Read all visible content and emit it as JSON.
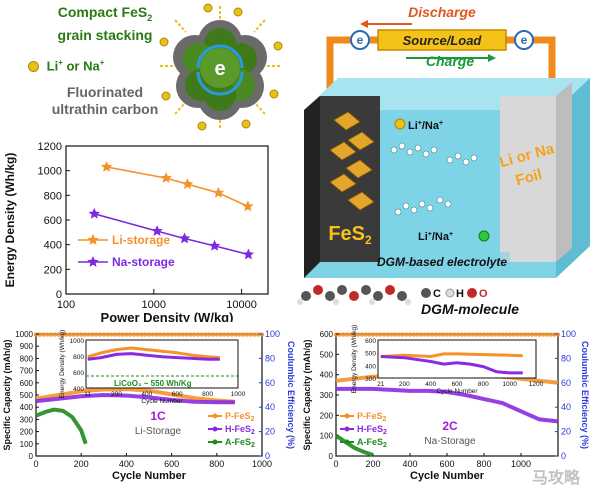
{
  "schematic": {
    "title_line1": "Compact FeS",
    "title_sub": "2",
    "title_line2": "grain stacking",
    "ion_label": "Li",
    "ion_sup1": "+",
    "ion_or": " or Na",
    "ion_sup2": "+",
    "carbon_line1": "Fluorinated",
    "carbon_line2": "ultrathin carbon",
    "center_e": "e",
    "center_e_sup": "-"
  },
  "cell": {
    "discharge": "Discharge",
    "charge": "Charge",
    "source_load": "Source/Load",
    "e_left": "e",
    "e_right": "e",
    "cathode_label": "FeS",
    "cathode_sub": "2",
    "anode_label_1": "Li or Na",
    "anode_label_2": "Foil",
    "ion_top": "Li",
    "ion_top_sup": "+",
    "ion_top_rest": "/Na",
    "ion_top_sup2": "+",
    "ion_bottom": "Li",
    "ion_bottom_sup": "+",
    "ion_bottom_rest": "/Na",
    "ion_bottom_sup2": "+",
    "electrolyte": "DGM-based electrolyte",
    "molecule_label": "DGM-molecule",
    "legend_c": "C",
    "legend_h": "H",
    "legend_o": "O",
    "colors": {
      "cathode": "#3a3a3a",
      "electrolyte": "#7fd3e6",
      "discharge": "#e0571f",
      "charge": "#1a9a3a",
      "wire": "#f08a1c"
    }
  },
  "chart_data": [
    {
      "type": "line",
      "xscale": "log",
      "xlabel": "Power Density (W/kg)",
      "ylabel": "Energy Density (Wh/kg)",
      "xlim": [
        100,
        20000
      ],
      "ylim": [
        0,
        1200
      ],
      "xticks": [
        "100",
        "1000",
        "10000"
      ],
      "yticks": [
        "0",
        "200",
        "400",
        "600",
        "800",
        "1000",
        "1200"
      ],
      "legend": "bottom-left",
      "series": [
        {
          "name": "Li-storage",
          "marker": "star",
          "color": "#f5922a",
          "x": [
            290,
            1380,
            2420,
            5450,
            11800
          ],
          "y": [
            1030,
            940,
            890,
            820,
            710
          ]
        },
        {
          "name": "Na-storage",
          "marker": "star",
          "color": "#7b2ae0",
          "x": [
            210,
            1090,
            2240,
            4930,
            11950
          ],
          "y": [
            650,
            510,
            450,
            390,
            320
          ]
        }
      ]
    },
    {
      "type": "line",
      "xlabel": "Cycle Number",
      "ylabel": "Specific Capacity (mAh/g)",
      "ylabel_right": "Coulumbic Efficiency (%)",
      "xlim": [
        0,
        1000
      ],
      "ylim": [
        0,
        1000
      ],
      "y2lim": [
        0,
        100
      ],
      "xticks": [
        "0",
        "200",
        "400",
        "600",
        "800",
        "1000"
      ],
      "yticks": [
        "0",
        "100",
        "200",
        "300",
        "400",
        "500",
        "600",
        "700",
        "800",
        "900",
        "1000"
      ],
      "y2ticks": [
        "0",
        "20",
        "40",
        "60",
        "80",
        "100"
      ],
      "annotation_rate": "1C",
      "annotation_label": "Li-Storage",
      "legend": "bottom-right",
      "series": [
        {
          "name": "P-FeS2",
          "color": "#f5922a",
          "x": [
            0,
            100,
            200,
            300,
            400,
            500,
            600,
            700,
            800,
            880
          ],
          "y": [
            470,
            500,
            530,
            545,
            548,
            535,
            505,
            475,
            455,
            445
          ]
        },
        {
          "name": "H-FeS2",
          "color": "#8b2be0",
          "x": [
            0,
            100,
            200,
            300,
            400,
            500,
            600,
            700,
            800,
            880
          ],
          "y": [
            450,
            470,
            490,
            500,
            495,
            480,
            460,
            445,
            440,
            440
          ]
        },
        {
          "name": "A-FeS2",
          "color": "#1e8a1e",
          "x": [
            0,
            40,
            80,
            120,
            160,
            200,
            220
          ],
          "y": [
            330,
            360,
            380,
            370,
            320,
            210,
            100
          ]
        }
      ],
      "inset": {
        "xlabel": "Cycle Number",
        "ylabel": "Energy Density (Wh/kg)",
        "xlim": [
          0,
          1000
        ],
        "ylim": [
          400,
          1000
        ],
        "xticks": [
          "11",
          "200",
          "400",
          "600",
          "800",
          "1000"
        ],
        "yticks": [
          "400",
          "600",
          "800",
          "1000"
        ],
        "reference_label": "LiCoO₂ ~ 550 Wh/Kg",
        "reference_y": 550,
        "series": [
          {
            "name": "P-FeS2",
            "color": "#f5922a",
            "x": [
              11,
              100,
              200,
              300,
              400,
              500,
              600,
              700,
              800,
              880
            ],
            "y": [
              790,
              840,
              880,
              900,
              880,
              860,
              840,
              810,
              790,
              780
            ]
          },
          {
            "name": "H-FeS2",
            "color": "#8b2be0",
            "x": [
              11,
              100,
              200,
              300,
              400,
              500,
              600,
              700,
              800,
              880
            ],
            "y": [
              760,
              780,
              820,
              830,
              810,
              790,
              780,
              770,
              760,
              760
            ]
          }
        ]
      }
    },
    {
      "type": "line",
      "xlabel": "Cycle Number",
      "ylabel": "Specific Capacity (mAh/g)",
      "ylabel_right": "Coulumbic Efficiency (%)",
      "xlim": [
        0,
        1200
      ],
      "ylim": [
        0,
        600
      ],
      "y2lim": [
        0,
        100
      ],
      "xticks": [
        "0",
        "200",
        "400",
        "600",
        "800",
        "1000"
      ],
      "yticks": [
        "0",
        "100",
        "200",
        "300",
        "400",
        "500",
        "600"
      ],
      "y2ticks": [
        "0",
        "20",
        "40",
        "60",
        "80",
        "100"
      ],
      "annotation_rate": "2C",
      "annotation_label": "Na-Storage",
      "legend": "bottom-left",
      "series": [
        {
          "name": "P-FeS2",
          "color": "#f5922a",
          "x": [
            0,
            100,
            200,
            300,
            400,
            500,
            600,
            700,
            800,
            900,
            1000,
            1100,
            1200
          ],
          "y": [
            370,
            380,
            390,
            395,
            400,
            405,
            405,
            400,
            395,
            390,
            380,
            370,
            360
          ]
        },
        {
          "name": "H-FeS2",
          "color": "#8b2be0",
          "x": [
            0,
            100,
            200,
            300,
            400,
            500,
            600,
            700,
            800,
            900,
            1000,
            1100,
            1200
          ],
          "y": [
            330,
            330,
            330,
            325,
            320,
            320,
            315,
            300,
            280,
            260,
            220,
            180,
            170
          ]
        },
        {
          "name": "A-FeS2",
          "color": "#1e8a1e",
          "x": [
            0,
            50,
            100,
            150,
            200
          ],
          "y": [
            100,
            70,
            40,
            20,
            5
          ]
        }
      ],
      "inset": {
        "xlabel": "Cycle Number",
        "ylabel": "Energy Density (Wh/kg)",
        "xlim": [
          0,
          1200
        ],
        "ylim": [
          300,
          600
        ],
        "xticks": [
          "21",
          "200",
          "400",
          "600",
          "800",
          "1000",
          "1200"
        ],
        "yticks": [
          "300",
          "400",
          "500",
          "600"
        ],
        "series": [
          {
            "name": "P-FeS2",
            "color": "#f5922a",
            "x": [
              21,
              200,
              400,
              500,
              600,
              800,
              1000,
              1100
            ],
            "y": [
              470,
              480,
              470,
              490,
              490,
              485,
              480,
              475
            ]
          },
          {
            "name": "H-FeS2",
            "color": "#8b2be0",
            "x": [
              21,
              200,
              400,
              500,
              600,
              700,
              800,
              900,
              1000,
              1100
            ],
            "y": [
              470,
              460,
              430,
              410,
              420,
              410,
              390,
              350,
              340,
              340
            ]
          }
        ]
      }
    }
  ],
  "watermark": "马攻略"
}
